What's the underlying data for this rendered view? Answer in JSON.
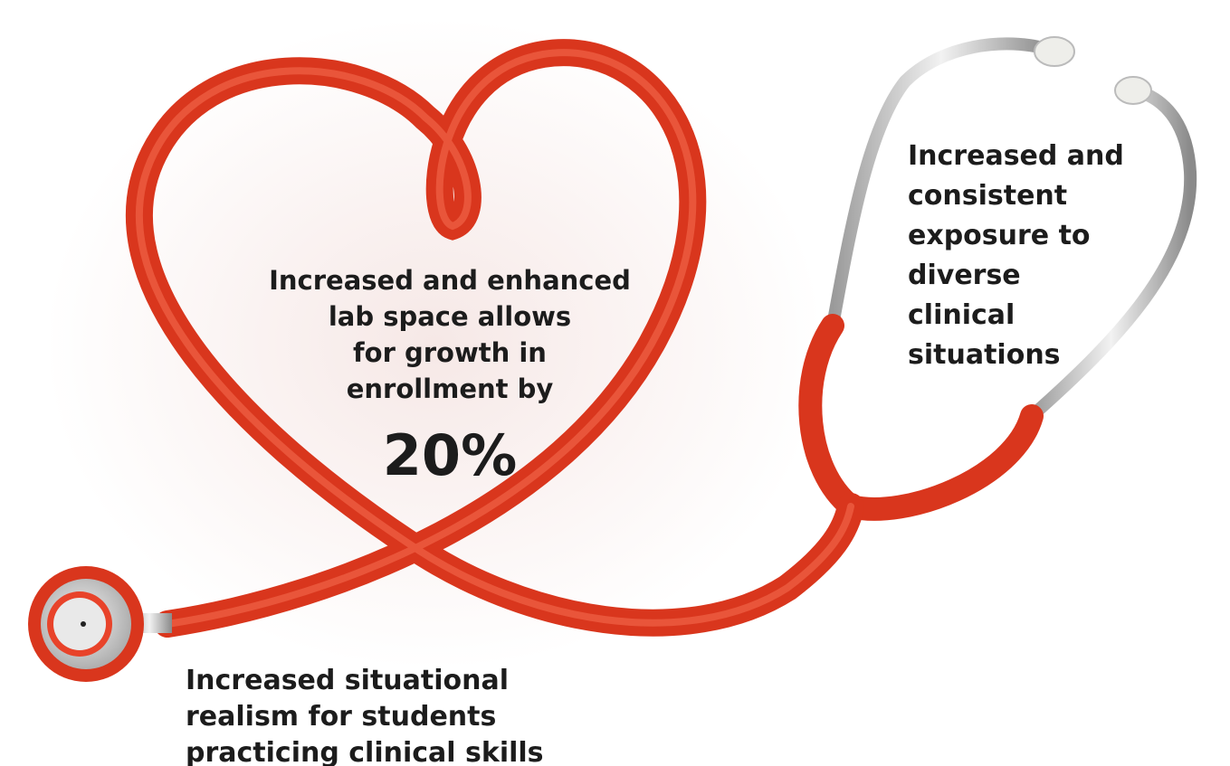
{
  "callouts": [
    {
      "lines": [
        "Increased and enhanced",
        "lab space allows",
        "for growth in",
        "enrollment by"
      ],
      "highlight": "20%"
    },
    {
      "lines": [
        "Increased and",
        "consistent",
        "exposure to",
        "diverse",
        "clinical",
        "situations"
      ]
    },
    {
      "lines": [
        "Increased situational",
        "realism for students",
        "practicing clinical skills"
      ]
    }
  ]
}
